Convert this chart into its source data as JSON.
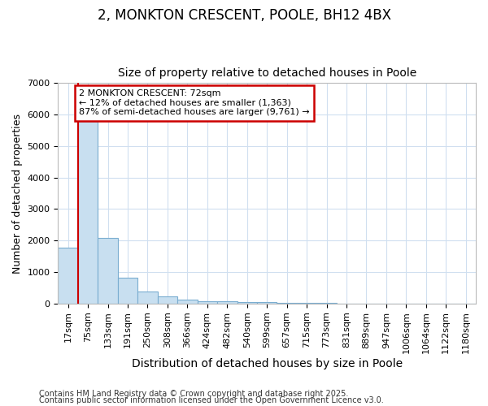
{
  "title1": "2, MONKTON CRESCENT, POOLE, BH12 4BX",
  "title2": "Size of property relative to detached houses in Poole",
  "xlabel": "Distribution of detached houses by size in Poole",
  "ylabel": "Number of detached properties",
  "categories": [
    "17sqm",
    "75sqm",
    "133sqm",
    "191sqm",
    "250sqm",
    "308sqm",
    "366sqm",
    "424sqm",
    "482sqm",
    "540sqm",
    "599sqm",
    "657sqm",
    "715sqm",
    "773sqm",
    "831sqm",
    "889sqm",
    "947sqm",
    "1006sqm",
    "1064sqm",
    "1122sqm",
    "1180sqm"
  ],
  "values": [
    1780,
    5800,
    2080,
    830,
    370,
    230,
    130,
    80,
    60,
    50,
    40,
    30,
    15,
    8,
    5,
    3,
    2,
    1,
    1,
    1,
    1
  ],
  "bar_color": "#c8dff0",
  "bar_edge_color": "#7aadd0",
  "vline_color": "#cc0000",
  "annotation_text": "2 MONKTON CRESCENT: 72sqm\n← 12% of detached houses are smaller (1,363)\n87% of semi-detached houses are larger (9,761) →",
  "annotation_box_color": "#cc0000",
  "ylim": [
    0,
    7000
  ],
  "yticks": [
    0,
    1000,
    2000,
    3000,
    4000,
    5000,
    6000,
    7000
  ],
  "background_color": "#ffffff",
  "grid_color": "#d0dff0",
  "footer1": "Contains HM Land Registry data © Crown copyright and database right 2025.",
  "footer2": "Contains public sector information licensed under the Open Government Licence v3.0.",
  "title1_fontsize": 12,
  "title2_fontsize": 10,
  "xlabel_fontsize": 10,
  "ylabel_fontsize": 9,
  "tick_fontsize": 8,
  "footer_fontsize": 7,
  "annotation_fontsize": 8
}
